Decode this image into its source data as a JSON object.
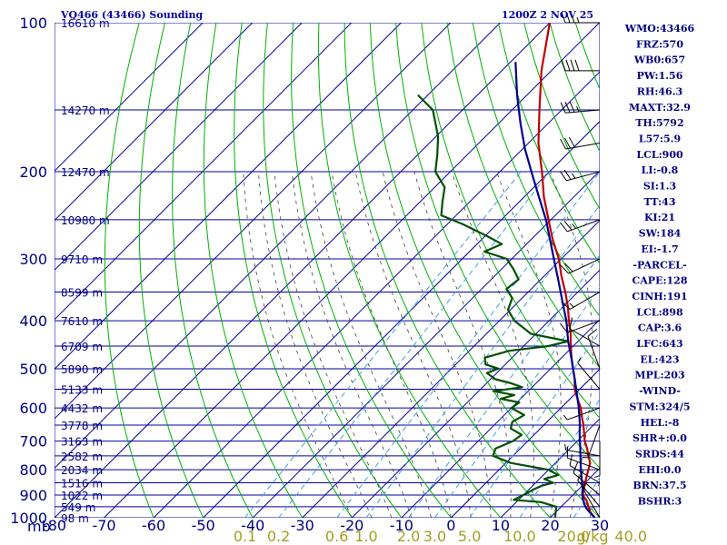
{
  "chart_data": {
    "type": "line",
    "title": "VQ466 (43466) Sounding",
    "valid_time": "1200Z  2 NOV 25",
    "pressure_unit_label": "mb",
    "mixing_ratio_unit_label": "g/kg",
    "x_range_c": [
      -80,
      30
    ],
    "y_range_mb": [
      100,
      1000
    ],
    "y_scale": "log",
    "grid": true,
    "pressure_ticks": [
      {
        "p": 100,
        "label": "100"
      },
      {
        "p": 200,
        "label": "200"
      },
      {
        "p": 300,
        "label": "300"
      },
      {
        "p": 400,
        "label": "400"
      },
      {
        "p": 500,
        "label": "500"
      },
      {
        "p": 600,
        "label": "600"
      },
      {
        "p": 700,
        "label": "700"
      },
      {
        "p": 800,
        "label": "800"
      },
      {
        "p": 900,
        "label": "900"
      },
      {
        "p": 1000,
        "label": "1000"
      }
    ],
    "temperature_ticks": [
      {
        "t": -80,
        "label": "-80"
      },
      {
        "t": -70,
        "label": "-70"
      },
      {
        "t": -60,
        "label": "-60"
      },
      {
        "t": -50,
        "label": "-50"
      },
      {
        "t": -40,
        "label": "-40"
      },
      {
        "t": -30,
        "label": "-30"
      },
      {
        "t": -20,
        "label": "-20"
      },
      {
        "t": -10,
        "label": "-10"
      },
      {
        "t": 0,
        "label": "0"
      },
      {
        "t": 10,
        "label": "10"
      },
      {
        "t": 20,
        "label": "20"
      },
      {
        "t": 30,
        "label": "30"
      }
    ],
    "height_labels": [
      {
        "p": 100,
        "label": "16610 m"
      },
      {
        "p": 150,
        "label": "14270 m"
      },
      {
        "p": 200,
        "label": "12470 m"
      },
      {
        "p": 250,
        "label": "10980 m"
      },
      {
        "p": 300,
        "label": "9710 m"
      },
      {
        "p": 350,
        "label": "8599 m"
      },
      {
        "p": 400,
        "label": "7610 m"
      },
      {
        "p": 450,
        "label": "6709 m"
      },
      {
        "p": 500,
        "label": "5890 m"
      },
      {
        "p": 550,
        "label": "5133 m"
      },
      {
        "p": 600,
        "label": "4432 m"
      },
      {
        "p": 650,
        "label": "3778 m"
      },
      {
        "p": 700,
        "label": "3163 m"
      },
      {
        "p": 750,
        "label": "2582 m"
      },
      {
        "p": 800,
        "label": "2034 m"
      },
      {
        "p": 850,
        "label": "1516 m"
      },
      {
        "p": 900,
        "label": "1022 m"
      },
      {
        "p": 950,
        "label": "549 m"
      },
      {
        "p": 1000,
        "label": "98 m"
      }
    ],
    "mixing_ratio_lines": [
      {
        "w": 0.1,
        "label": "0.1"
      },
      {
        "w": 0.2,
        "label": "0.2"
      },
      {
        "w": 0.6,
        "label": "0.6"
      },
      {
        "w": 1.0,
        "label": "1.0"
      },
      {
        "w": 2.0,
        "label": "2.0"
      },
      {
        "w": 3.0,
        "label": "3.0"
      },
      {
        "w": 5.0,
        "label": "5.0"
      },
      {
        "w": 10.0,
        "label": "10.0"
      },
      {
        "w": 20.0,
        "label": "20.0"
      },
      {
        "w": 40.0,
        "label": "40.0"
      }
    ],
    "series": [
      {
        "key": "temperature",
        "color": "#c00000",
        "points": [
          [
            1000,
            29.0
          ],
          [
            975,
            27.0
          ],
          [
            950,
            25.5
          ],
          [
            925,
            24.0
          ],
          [
            900,
            22.0
          ],
          [
            875,
            21.0
          ],
          [
            850,
            20.0
          ],
          [
            825,
            19.0
          ],
          [
            800,
            18.0
          ],
          [
            775,
            17.0
          ],
          [
            750,
            15.2
          ],
          [
            725,
            13.5
          ],
          [
            700,
            11.5
          ],
          [
            675,
            9.8
          ],
          [
            650,
            8.0
          ],
          [
            625,
            6.0
          ],
          [
            600,
            4.0
          ],
          [
            575,
            1.5
          ],
          [
            560,
            0.0
          ],
          [
            550,
            -1.0
          ],
          [
            525,
            -3.0
          ],
          [
            500,
            -5.5
          ],
          [
            475,
            -8.0
          ],
          [
            450,
            -10.5
          ],
          [
            425,
            -13.0
          ],
          [
            400,
            -16.0
          ],
          [
            375,
            -19.0
          ],
          [
            350,
            -22.5
          ],
          [
            325,
            -26.5
          ],
          [
            300,
            -30.5
          ],
          [
            275,
            -35.5
          ],
          [
            250,
            -40.5
          ],
          [
            225,
            -46.0
          ],
          [
            200,
            -51.5
          ],
          [
            175,
            -58.0
          ],
          [
            150,
            -64.5
          ],
          [
            125,
            -72.0
          ],
          [
            100,
            -80.0
          ]
        ]
      },
      {
        "key": "dewpoint",
        "color": "#005000",
        "points": [
          [
            1000,
            21.0
          ],
          [
            975,
            20.0
          ],
          [
            950,
            19.0
          ],
          [
            930,
            15.0
          ],
          [
            920,
            9.0
          ],
          [
            900,
            10.0
          ],
          [
            875,
            11.0
          ],
          [
            860,
            12.0
          ],
          [
            850,
            13.5
          ],
          [
            835,
            11.0
          ],
          [
            820,
            13.0
          ],
          [
            800,
            10.0
          ],
          [
            775,
            1.0
          ],
          [
            750,
            -4.0
          ],
          [
            725,
            -5.0
          ],
          [
            700,
            -3.0
          ],
          [
            680,
            -2.5
          ],
          [
            660,
            -6.0
          ],
          [
            640,
            -7.0
          ],
          [
            620,
            -6.0
          ],
          [
            600,
            -10.0
          ],
          [
            585,
            -9.5
          ],
          [
            575,
            -14.0
          ],
          [
            565,
            -12.0
          ],
          [
            555,
            -17.0
          ],
          [
            545,
            -12.0
          ],
          [
            535,
            -15.0
          ],
          [
            525,
            -19.0
          ],
          [
            510,
            -22.0
          ],
          [
            500,
            -20.5
          ],
          [
            490,
            -24.0
          ],
          [
            475,
            -25.5
          ],
          [
            460,
            -22.0
          ],
          [
            450,
            -15.0
          ],
          [
            440,
            -12.0
          ],
          [
            425,
            -21.0
          ],
          [
            400,
            -27.0
          ],
          [
            380,
            -30.5
          ],
          [
            360,
            -32.0
          ],
          [
            345,
            -35.0
          ],
          [
            330,
            -34.5
          ],
          [
            315,
            -37.5
          ],
          [
            300,
            -41.0
          ],
          [
            290,
            -47.0
          ],
          [
            280,
            -45.0
          ],
          [
            270,
            -49.5
          ],
          [
            255,
            -57.0
          ],
          [
            245,
            -63.0
          ],
          [
            230,
            -65.5
          ],
          [
            215,
            -68.0
          ],
          [
            200,
            -73.0
          ],
          [
            185,
            -76.0
          ],
          [
            170,
            -79.5
          ],
          [
            150,
            -86.0
          ],
          [
            140,
            -92.0
          ]
        ]
      },
      {
        "key": "parcel",
        "color": "#000090",
        "points": [
          [
            1000,
            29.0
          ],
          [
            960,
            25.6
          ],
          [
            940,
            24.2
          ],
          [
            920,
            23.0
          ],
          [
            898,
            21.8
          ],
          [
            870,
            20.5
          ],
          [
            840,
            18.8
          ],
          [
            800,
            16.5
          ],
          [
            760,
            14.2
          ],
          [
            720,
            11.8
          ],
          [
            680,
            9.2
          ],
          [
            643,
            6.8
          ],
          [
            600,
            3.6
          ],
          [
            560,
            0.2
          ],
          [
            520,
            -3.5
          ],
          [
            480,
            -7.5
          ],
          [
            440,
            -12.0
          ],
          [
            400,
            -16.5
          ],
          [
            360,
            -22.0
          ],
          [
            330,
            -26.5
          ],
          [
            300,
            -31.5
          ],
          [
            270,
            -37.0
          ],
          [
            250,
            -41.0
          ],
          [
            225,
            -47.0
          ],
          [
            203,
            -52.8
          ],
          [
            180,
            -59.5
          ],
          [
            160,
            -65.5
          ],
          [
            140,
            -72.0
          ],
          [
            120,
            -79.0
          ]
        ]
      }
    ],
    "indices": [
      "WMO:43466",
      "FRZ:570",
      "WB0:657",
      "PW:1.56",
      "RH:46.3",
      "MAXT:32.9",
      "TH:5792",
      "L57:5.9",
      "LCL:900",
      "LI:-0.8",
      "SI:1.3",
      "TT:43",
      "KI:21",
      "SW:184",
      "EI:-1.7",
      "-PARCEL-",
      "CAPE:128",
      "CINH:191",
      "LCL:898",
      "CAP:3.6",
      "LFC:643",
      "EL:423",
      "MPL:203",
      "-WIND-",
      "STM:324/5",
      "HEL:-8",
      "SHR+:0.0",
      "SRDS:44",
      "EHI:0.0",
      "BRN:37.5",
      "BSHR:3"
    ],
    "wind_barbs": [
      {
        "p": 1000,
        "dir": 330,
        "spd": 5
      },
      {
        "p": 950,
        "dir": 320,
        "spd": 10
      },
      {
        "p": 900,
        "dir": 310,
        "spd": 10
      },
      {
        "p": 850,
        "dir": 300,
        "spd": 10
      },
      {
        "p": 800,
        "dir": 290,
        "spd": 10
      },
      {
        "p": 750,
        "dir": 280,
        "spd": 5
      },
      {
        "p": 700,
        "dir": 180,
        "spd": 5
      },
      {
        "p": 650,
        "dir": 200,
        "spd": 5
      },
      {
        "p": 600,
        "dir": 250,
        "spd": 5
      },
      {
        "p": 550,
        "dir": 320,
        "spd": 5
      },
      {
        "p": 500,
        "dir": 340,
        "spd": 10
      },
      {
        "p": 450,
        "dir": 300,
        "spd": 10
      },
      {
        "p": 400,
        "dir": 250,
        "spd": 10
      },
      {
        "p": 350,
        "dir": 240,
        "spd": 15
      },
      {
        "p": 300,
        "dir": 245,
        "spd": 20
      },
      {
        "p": 250,
        "dir": 250,
        "spd": 25
      },
      {
        "p": 200,
        "dir": 255,
        "spd": 25
      },
      {
        "p": 175,
        "dir": 260,
        "spd": 30
      },
      {
        "p": 150,
        "dir": 265,
        "spd": 35
      },
      {
        "p": 125,
        "dir": 270,
        "spd": 40
      },
      {
        "p": 100,
        "dir": 270,
        "spd": 35
      }
    ]
  },
  "colors": {
    "grid": "#0000a0",
    "dry_adiabat": "#00b000",
    "moist_adiabat": "#404040",
    "mixing_ratio": "#40a0e0",
    "barb": "#000000"
  }
}
